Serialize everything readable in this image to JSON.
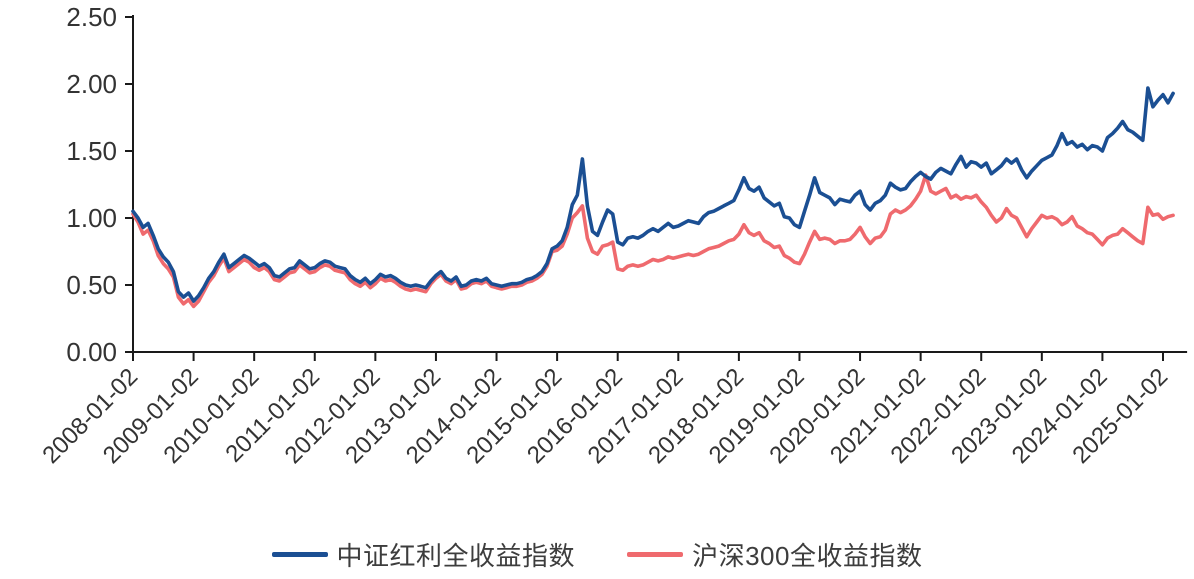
{
  "chart_data": {
    "type": "line",
    "title": "",
    "xlabel": "",
    "ylabel": "",
    "grid": false,
    "legend_position": "bottom",
    "ylim": [
      0.0,
      2.5
    ],
    "y_tick_labels": [
      "0.00",
      "0.50",
      "1.00",
      "1.50",
      "2.00",
      "2.50"
    ],
    "x_tick_labels": [
      "2008-01-02",
      "2009-01-02",
      "2010-01-02",
      "2011-01-02",
      "2012-01-02",
      "2013-01-02",
      "2014-01-02",
      "2015-01-02",
      "2016-01-02",
      "2017-01-02",
      "2018-01-02",
      "2019-01-02",
      "2020-01-02",
      "2021-01-02",
      "2022-01-02",
      "2023-01-02",
      "2024-01-02",
      "2025-01-02"
    ],
    "x_start": "2008-01",
    "x_interval": "monthly",
    "axis_color": "#1a1a1a",
    "tick_label_color": "#333333",
    "series": [
      {
        "name": "中证红利全收益指数",
        "color": "#1b4f93",
        "values": [
          1.05,
          1.0,
          0.93,
          0.96,
          0.87,
          0.77,
          0.71,
          0.67,
          0.6,
          0.45,
          0.41,
          0.44,
          0.38,
          0.42,
          0.48,
          0.55,
          0.6,
          0.67,
          0.73,
          0.63,
          0.66,
          0.69,
          0.72,
          0.7,
          0.67,
          0.64,
          0.66,
          0.63,
          0.57,
          0.56,
          0.59,
          0.62,
          0.63,
          0.68,
          0.65,
          0.62,
          0.63,
          0.66,
          0.68,
          0.67,
          0.64,
          0.63,
          0.62,
          0.57,
          0.54,
          0.52,
          0.55,
          0.51,
          0.54,
          0.58,
          0.56,
          0.57,
          0.55,
          0.52,
          0.5,
          0.49,
          0.5,
          0.49,
          0.48,
          0.53,
          0.57,
          0.6,
          0.55,
          0.53,
          0.56,
          0.49,
          0.5,
          0.53,
          0.54,
          0.53,
          0.55,
          0.51,
          0.5,
          0.49,
          0.5,
          0.51,
          0.51,
          0.52,
          0.54,
          0.55,
          0.57,
          0.6,
          0.66,
          0.77,
          0.79,
          0.83,
          0.93,
          1.1,
          1.17,
          1.44,
          1.09,
          0.9,
          0.87,
          0.97,
          1.06,
          1.03,
          0.82,
          0.8,
          0.85,
          0.86,
          0.85,
          0.87,
          0.9,
          0.92,
          0.9,
          0.93,
          0.96,
          0.93,
          0.94,
          0.96,
          0.98,
          0.97,
          0.96,
          1.01,
          1.04,
          1.05,
          1.07,
          1.09,
          1.11,
          1.13,
          1.21,
          1.3,
          1.22,
          1.2,
          1.23,
          1.15,
          1.12,
          1.09,
          1.11,
          1.01,
          1.0,
          0.95,
          0.93,
          1.05,
          1.17,
          1.3,
          1.19,
          1.17,
          1.15,
          1.1,
          1.14,
          1.13,
          1.12,
          1.17,
          1.2,
          1.1,
          1.06,
          1.11,
          1.13,
          1.17,
          1.26,
          1.23,
          1.21,
          1.22,
          1.27,
          1.31,
          1.34,
          1.31,
          1.29,
          1.34,
          1.37,
          1.35,
          1.33,
          1.4,
          1.46,
          1.38,
          1.42,
          1.41,
          1.38,
          1.41,
          1.33,
          1.36,
          1.39,
          1.44,
          1.41,
          1.44,
          1.36,
          1.3,
          1.35,
          1.39,
          1.43,
          1.45,
          1.47,
          1.54,
          1.63,
          1.55,
          1.57,
          1.53,
          1.55,
          1.51,
          1.54,
          1.53,
          1.5,
          1.6,
          1.63,
          1.67,
          1.72,
          1.66,
          1.64,
          1.61,
          1.58,
          1.97,
          1.83,
          1.88,
          1.92,
          1.86,
          1.93
        ]
      },
      {
        "name": "沪深300全收益指数",
        "color": "#ef6a6e",
        "values": [
          1.03,
          0.97,
          0.88,
          0.91,
          0.83,
          0.72,
          0.66,
          0.62,
          0.56,
          0.41,
          0.36,
          0.39,
          0.34,
          0.38,
          0.45,
          0.52,
          0.57,
          0.64,
          0.7,
          0.6,
          0.63,
          0.66,
          0.69,
          0.67,
          0.63,
          0.61,
          0.63,
          0.6,
          0.54,
          0.53,
          0.56,
          0.59,
          0.6,
          0.65,
          0.62,
          0.59,
          0.6,
          0.63,
          0.65,
          0.64,
          0.61,
          0.6,
          0.59,
          0.54,
          0.51,
          0.49,
          0.52,
          0.48,
          0.51,
          0.55,
          0.53,
          0.54,
          0.52,
          0.49,
          0.47,
          0.46,
          0.47,
          0.46,
          0.45,
          0.51,
          0.55,
          0.58,
          0.53,
          0.51,
          0.54,
          0.47,
          0.48,
          0.51,
          0.52,
          0.51,
          0.53,
          0.49,
          0.48,
          0.47,
          0.48,
          0.49,
          0.49,
          0.5,
          0.52,
          0.53,
          0.55,
          0.58,
          0.64,
          0.75,
          0.76,
          0.79,
          0.88,
          1.0,
          1.04,
          1.09,
          0.85,
          0.75,
          0.73,
          0.79,
          0.8,
          0.82,
          0.62,
          0.61,
          0.64,
          0.65,
          0.64,
          0.65,
          0.67,
          0.69,
          0.68,
          0.69,
          0.71,
          0.7,
          0.71,
          0.72,
          0.73,
          0.72,
          0.73,
          0.75,
          0.77,
          0.78,
          0.79,
          0.81,
          0.83,
          0.84,
          0.88,
          0.95,
          0.89,
          0.87,
          0.89,
          0.83,
          0.81,
          0.78,
          0.79,
          0.72,
          0.7,
          0.67,
          0.66,
          0.73,
          0.82,
          0.9,
          0.84,
          0.85,
          0.84,
          0.81,
          0.83,
          0.83,
          0.84,
          0.88,
          0.93,
          0.86,
          0.81,
          0.85,
          0.86,
          0.91,
          1.03,
          1.06,
          1.04,
          1.06,
          1.09,
          1.14,
          1.2,
          1.32,
          1.2,
          1.18,
          1.2,
          1.22,
          1.15,
          1.17,
          1.14,
          1.16,
          1.15,
          1.17,
          1.12,
          1.08,
          1.02,
          0.97,
          1.0,
          1.07,
          1.02,
          1.0,
          0.93,
          0.86,
          0.92,
          0.97,
          1.02,
          1.0,
          1.01,
          0.99,
          0.95,
          0.97,
          1.01,
          0.94,
          0.92,
          0.89,
          0.88,
          0.84,
          0.8,
          0.85,
          0.87,
          0.88,
          0.92,
          0.89,
          0.86,
          0.83,
          0.81,
          1.08,
          1.02,
          1.03,
          0.99,
          1.01,
          1.02
        ]
      }
    ]
  }
}
